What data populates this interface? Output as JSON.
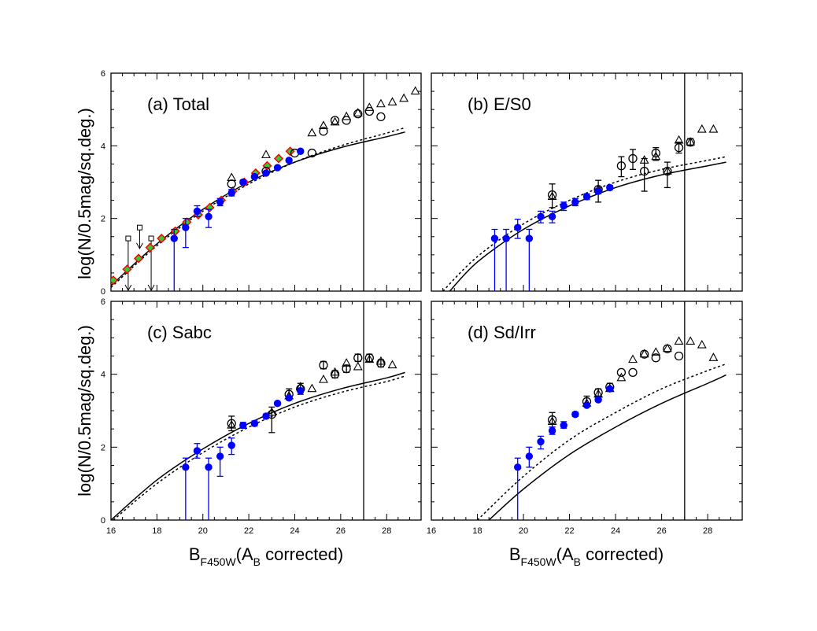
{
  "figure": {
    "ylabel": "log(N/0.5mag/sq.deg.)",
    "xlabel_main": "B",
    "xlabel_sub": "F450W",
    "xlabel_paren_open": "(A",
    "xlabel_paren_sub": "B",
    "xlabel_tail": " corrected)",
    "x_ticks": [
      "16",
      "18",
      "20",
      "22",
      "24",
      "26",
      "28"
    ],
    "y_ticks": [
      "0",
      "2",
      "4",
      "6"
    ],
    "colors": {
      "axis": "#000000",
      "hdf": "#0000ff",
      "diamond": "#ff0000",
      "diamond_fill": "#33cc33"
    }
  },
  "chart_data": [
    {
      "type": "scatter",
      "title": "(a) Total",
      "xlim": [
        16,
        29.5
      ],
      "ylim": [
        0,
        6
      ],
      "completeness_limit": 27.0,
      "model_solid": {
        "x": [
          16,
          18,
          20,
          22,
          24,
          26,
          28,
          28.8
        ],
        "y": [
          0.15,
          1.3,
          2.25,
          3.0,
          3.55,
          3.95,
          4.25,
          4.38
        ]
      },
      "model_dotted": {
        "x": [
          16,
          18,
          20,
          22,
          24,
          26,
          28,
          28.8
        ],
        "y": [
          0.1,
          1.25,
          2.2,
          2.95,
          3.55,
          4.0,
          4.35,
          4.5
        ]
      },
      "hdf_points": [
        {
          "x": 18.75,
          "y": 1.45,
          "lo": 0.0,
          "hi": 1.7
        },
        {
          "x": 19.25,
          "y": 1.75,
          "lo": 1.2,
          "hi": 2.0
        },
        {
          "x": 19.75,
          "y": 2.2,
          "lo": 2.05,
          "hi": 2.35
        },
        {
          "x": 20.25,
          "y": 2.05,
          "lo": 1.75,
          "hi": 2.25
        },
        {
          "x": 20.75,
          "y": 2.45,
          "lo": 2.35,
          "hi": 2.55
        },
        {
          "x": 21.25,
          "y": 2.7,
          "lo": 2.62,
          "hi": 2.8
        },
        {
          "x": 21.75,
          "y": 3.0,
          "lo": 2.95,
          "hi": 3.06
        },
        {
          "x": 22.25,
          "y": 3.15,
          "lo": 3.1,
          "hi": 3.2
        },
        {
          "x": 22.75,
          "y": 3.25,
          "lo": 3.2,
          "hi": 3.3
        },
        {
          "x": 23.25,
          "y": 3.4,
          "lo": 3.36,
          "hi": 3.44
        },
        {
          "x": 23.75,
          "y": 3.6,
          "lo": 3.56,
          "hi": 3.64
        },
        {
          "x": 24.25,
          "y": 3.85,
          "lo": 3.81,
          "hi": 3.89
        }
      ],
      "open_circles": [
        {
          "x": 21.25,
          "y": 2.95
        },
        {
          "x": 22.75,
          "y": 3.3
        },
        {
          "x": 24.0,
          "y": 3.8
        },
        {
          "x": 24.75,
          "y": 3.8
        },
        {
          "x": 25.25,
          "y": 4.4
        },
        {
          "x": 25.75,
          "y": 4.7
        },
        {
          "x": 26.25,
          "y": 4.7
        },
        {
          "x": 26.75,
          "y": 4.88
        },
        {
          "x": 27.25,
          "y": 4.95
        },
        {
          "x": 27.75,
          "y": 4.8
        }
      ],
      "open_triangles": [
        {
          "x": 21.25,
          "y": 3.12
        },
        {
          "x": 22.75,
          "y": 3.75
        },
        {
          "x": 24.75,
          "y": 4.35
        },
        {
          "x": 25.25,
          "y": 4.55
        },
        {
          "x": 25.75,
          "y": 4.65
        },
        {
          "x": 26.25,
          "y": 4.8
        },
        {
          "x": 26.75,
          "y": 4.9
        },
        {
          "x": 27.25,
          "y": 5.05
        },
        {
          "x": 27.75,
          "y": 5.15
        },
        {
          "x": 28.25,
          "y": 5.2
        },
        {
          "x": 28.75,
          "y": 5.3
        },
        {
          "x": 29.25,
          "y": 5.5
        }
      ],
      "diamonds": [
        {
          "x": 16.1,
          "y": 0.3
        },
        {
          "x": 16.7,
          "y": 0.6
        },
        {
          "x": 17.2,
          "y": 0.9
        },
        {
          "x": 17.7,
          "y": 1.2
        },
        {
          "x": 18.2,
          "y": 1.45
        },
        {
          "x": 18.8,
          "y": 1.65
        },
        {
          "x": 19.3,
          "y": 1.9
        },
        {
          "x": 19.8,
          "y": 2.1
        },
        {
          "x": 20.3,
          "y": 2.3
        },
        {
          "x": 20.8,
          "y": 2.5
        },
        {
          "x": 21.3,
          "y": 2.75
        },
        {
          "x": 21.8,
          "y": 3.0
        },
        {
          "x": 22.3,
          "y": 3.25
        },
        {
          "x": 22.8,
          "y": 3.45
        },
        {
          "x": 23.3,
          "y": 3.65
        },
        {
          "x": 23.8,
          "y": 3.85
        }
      ],
      "small_squares": [
        {
          "x": 16.75,
          "y": 1.45,
          "down_to": 0.0
        },
        {
          "x": 17.25,
          "y": 1.75,
          "down_to": 1.15
        },
        {
          "x": 17.75,
          "y": 1.45,
          "down_to": 0.0
        }
      ]
    },
    {
      "type": "scatter",
      "title": "(b) E/S0",
      "xlim": [
        16,
        29.5
      ],
      "ylim": [
        0,
        6
      ],
      "completeness_limit": 27.0,
      "model_solid": {
        "x": [
          16.8,
          18,
          20,
          22,
          24,
          26,
          28,
          28.8
        ],
        "y": [
          0.0,
          0.8,
          1.7,
          2.35,
          2.85,
          3.2,
          3.45,
          3.55
        ]
      },
      "model_dotted": {
        "x": [
          16.5,
          18,
          20,
          22,
          24,
          26,
          28,
          28.8
        ],
        "y": [
          0.0,
          0.95,
          1.85,
          2.5,
          3.0,
          3.35,
          3.6,
          3.7
        ]
      },
      "hdf_points": [
        {
          "x": 18.75,
          "y": 1.45,
          "lo": 0.0,
          "hi": 1.7
        },
        {
          "x": 19.25,
          "y": 1.45,
          "lo": 0.0,
          "hi": 1.7
        },
        {
          "x": 19.75,
          "y": 1.75,
          "lo": 1.45,
          "hi": 1.98
        },
        {
          "x": 20.25,
          "y": 1.45,
          "lo": 0.0,
          "hi": 1.7
        },
        {
          "x": 20.75,
          "y": 2.05,
          "lo": 1.88,
          "hi": 2.2
        },
        {
          "x": 21.25,
          "y": 2.05,
          "lo": 1.88,
          "hi": 2.2
        },
        {
          "x": 21.75,
          "y": 2.35,
          "lo": 2.22,
          "hi": 2.45
        },
        {
          "x": 22.25,
          "y": 2.45,
          "lo": 2.35,
          "hi": 2.55
        },
        {
          "x": 22.75,
          "y": 2.6,
          "lo": 2.52,
          "hi": 2.68
        },
        {
          "x": 23.25,
          "y": 2.75,
          "lo": 2.68,
          "hi": 2.82
        },
        {
          "x": 23.75,
          "y": 2.85,
          "lo": 2.79,
          "hi": 2.91
        }
      ],
      "open_circles": [
        {
          "x": 21.25,
          "y": 2.65,
          "lo": 2.3,
          "hi": 2.95
        },
        {
          "x": 23.25,
          "y": 2.8,
          "lo": 2.45,
          "hi": 3.05
        },
        {
          "x": 24.25,
          "y": 3.45,
          "lo": 3.15,
          "hi": 3.7
        },
        {
          "x": 24.75,
          "y": 3.65,
          "lo": 3.35,
          "hi": 3.9
        },
        {
          "x": 25.25,
          "y": 3.3,
          "lo": 2.75,
          "hi": 3.65
        },
        {
          "x": 25.75,
          "y": 3.8,
          "lo": 3.6,
          "hi": 3.95
        },
        {
          "x": 26.25,
          "y": 3.3,
          "lo": 2.85,
          "hi": 3.55
        },
        {
          "x": 26.75,
          "y": 3.95,
          "lo": 3.8,
          "hi": 4.1
        },
        {
          "x": 27.25,
          "y": 4.1,
          "lo": 4.0,
          "hi": 4.2
        }
      ],
      "open_triangles": [
        {
          "x": 21.25,
          "y": 2.6
        },
        {
          "x": 23.25,
          "y": 2.8
        },
        {
          "x": 25.25,
          "y": 3.6
        },
        {
          "x": 25.75,
          "y": 3.7
        },
        {
          "x": 26.25,
          "y": 3.3
        },
        {
          "x": 26.75,
          "y": 4.15
        },
        {
          "x": 27.25,
          "y": 4.1
        },
        {
          "x": 27.75,
          "y": 4.45
        },
        {
          "x": 28.25,
          "y": 4.45
        }
      ],
      "diamonds": [],
      "small_squares": []
    },
    {
      "type": "scatter",
      "title": "(c) Sabc",
      "xlim": [
        16,
        29.5
      ],
      "ylim": [
        0,
        6
      ],
      "completeness_limit": 27.0,
      "model_solid": {
        "x": [
          16,
          18,
          20,
          22,
          24,
          26,
          28,
          28.8
        ],
        "y": [
          0.0,
          1.1,
          1.95,
          2.65,
          3.2,
          3.6,
          3.9,
          4.05
        ]
      },
      "model_dotted": {
        "x": [
          16.1,
          18,
          20,
          22,
          24,
          26,
          28,
          28.8
        ],
        "y": [
          0.0,
          1.0,
          1.85,
          2.55,
          3.1,
          3.5,
          3.8,
          3.95
        ]
      },
      "hdf_points": [
        {
          "x": 19.25,
          "y": 1.45,
          "lo": 0.0,
          "hi": 1.7
        },
        {
          "x": 19.75,
          "y": 1.9,
          "lo": 1.7,
          "hi": 2.1
        },
        {
          "x": 20.25,
          "y": 1.45,
          "lo": 0.0,
          "hi": 1.7
        },
        {
          "x": 20.75,
          "y": 1.75,
          "lo": 1.2,
          "hi": 2.0
        },
        {
          "x": 21.25,
          "y": 2.05,
          "lo": 1.8,
          "hi": 2.25
        },
        {
          "x": 21.75,
          "y": 2.6,
          "lo": 2.52,
          "hi": 2.68
        },
        {
          "x": 22.25,
          "y": 2.65,
          "lo": 2.58,
          "hi": 2.72
        },
        {
          "x": 22.75,
          "y": 2.85,
          "lo": 2.79,
          "hi": 2.91
        },
        {
          "x": 23.25,
          "y": 3.2,
          "lo": 3.15,
          "hi": 3.25
        },
        {
          "x": 23.75,
          "y": 3.35,
          "lo": 3.3,
          "hi": 3.4
        },
        {
          "x": 24.25,
          "y": 3.55,
          "lo": 3.5,
          "hi": 3.6
        }
      ],
      "open_circles": [
        {
          "x": 21.25,
          "y": 2.65,
          "lo": 2.45,
          "hi": 2.85
        },
        {
          "x": 23.0,
          "y": 2.9,
          "lo": 2.4,
          "hi": 3.1
        },
        {
          "x": 23.75,
          "y": 3.45,
          "lo": 3.3,
          "hi": 3.6
        },
        {
          "x": 24.25,
          "y": 3.6,
          "lo": 3.45,
          "hi": 3.75
        },
        {
          "x": 25.25,
          "y": 4.25,
          "lo": 4.15,
          "hi": 4.35
        },
        {
          "x": 25.75,
          "y": 4.0,
          "lo": 3.9,
          "hi": 4.1
        },
        {
          "x": 26.25,
          "y": 4.15,
          "lo": 4.05,
          "hi": 4.25
        },
        {
          "x": 26.75,
          "y": 4.45,
          "lo": 4.35,
          "hi": 4.55
        },
        {
          "x": 27.25,
          "y": 4.45,
          "lo": 4.35,
          "hi": 4.55
        },
        {
          "x": 27.75,
          "y": 4.3,
          "lo": 4.2,
          "hi": 4.4
        }
      ],
      "open_triangles": [
        {
          "x": 21.25,
          "y": 2.6
        },
        {
          "x": 23.0,
          "y": 2.95
        },
        {
          "x": 23.75,
          "y": 3.4
        },
        {
          "x": 24.25,
          "y": 3.65
        },
        {
          "x": 24.75,
          "y": 3.6
        },
        {
          "x": 25.25,
          "y": 3.85
        },
        {
          "x": 25.75,
          "y": 4.05
        },
        {
          "x": 26.25,
          "y": 4.3
        },
        {
          "x": 26.75,
          "y": 4.2
        },
        {
          "x": 27.25,
          "y": 4.4
        },
        {
          "x": 27.75,
          "y": 4.35
        },
        {
          "x": 28.25,
          "y": 4.25
        }
      ],
      "diamonds": [],
      "small_squares": []
    },
    {
      "type": "scatter",
      "title": "(d) Sd/Irr",
      "xlim": [
        16,
        29.5
      ],
      "ylim": [
        0,
        6
      ],
      "completeness_limit": 27.0,
      "model_solid": {
        "x": [
          18.5,
          20,
          22,
          24,
          26,
          28,
          28.8
        ],
        "y": [
          0.0,
          0.85,
          1.8,
          2.55,
          3.2,
          3.75,
          3.98
        ]
      },
      "model_dotted": {
        "x": [
          18.0,
          20,
          22,
          24,
          26,
          28,
          28.8
        ],
        "y": [
          0.0,
          1.2,
          2.2,
          2.95,
          3.6,
          4.1,
          4.28
        ]
      },
      "hdf_points": [
        {
          "x": 19.75,
          "y": 1.45,
          "lo": 0.0,
          "hi": 1.7
        },
        {
          "x": 20.25,
          "y": 1.75,
          "lo": 1.45,
          "hi": 2.0
        },
        {
          "x": 20.75,
          "y": 2.15,
          "lo": 1.95,
          "hi": 2.3
        },
        {
          "x": 21.25,
          "y": 2.45,
          "lo": 2.35,
          "hi": 2.55
        },
        {
          "x": 21.75,
          "y": 2.6,
          "lo": 2.52,
          "hi": 2.7
        },
        {
          "x": 22.25,
          "y": 2.9,
          "lo": 2.84,
          "hi": 2.96
        },
        {
          "x": 22.75,
          "y": 3.15,
          "lo": 3.1,
          "hi": 3.2
        },
        {
          "x": 23.25,
          "y": 3.3,
          "lo": 3.25,
          "hi": 3.35
        },
        {
          "x": 23.75,
          "y": 3.6,
          "lo": 3.56,
          "hi": 3.64
        }
      ],
      "open_circles": [
        {
          "x": 21.25,
          "y": 2.75,
          "lo": 2.55,
          "hi": 2.95
        },
        {
          "x": 22.75,
          "y": 3.25,
          "lo": 3.1,
          "hi": 3.4
        },
        {
          "x": 23.25,
          "y": 3.5,
          "lo": 3.4,
          "hi": 3.6
        },
        {
          "x": 23.75,
          "y": 3.65,
          "lo": 3.55,
          "hi": 3.75
        },
        {
          "x": 24.25,
          "y": 4.05
        },
        {
          "x": 24.75,
          "y": 4.05
        },
        {
          "x": 25.25,
          "y": 4.55
        },
        {
          "x": 25.75,
          "y": 4.45
        },
        {
          "x": 26.25,
          "y": 4.7
        },
        {
          "x": 26.75,
          "y": 4.5
        }
      ],
      "open_triangles": [
        {
          "x": 21.25,
          "y": 2.7
        },
        {
          "x": 22.75,
          "y": 3.2
        },
        {
          "x": 23.25,
          "y": 3.45
        },
        {
          "x": 23.75,
          "y": 3.6
        },
        {
          "x": 24.25,
          "y": 3.9
        },
        {
          "x": 24.75,
          "y": 4.4
        },
        {
          "x": 25.25,
          "y": 4.55
        },
        {
          "x": 25.75,
          "y": 4.6
        },
        {
          "x": 26.25,
          "y": 4.7
        },
        {
          "x": 26.75,
          "y": 4.9
        },
        {
          "x": 27.25,
          "y": 4.9
        },
        {
          "x": 27.75,
          "y": 4.8
        },
        {
          "x": 28.25,
          "y": 4.45
        }
      ],
      "diamonds": [],
      "small_squares": []
    }
  ]
}
